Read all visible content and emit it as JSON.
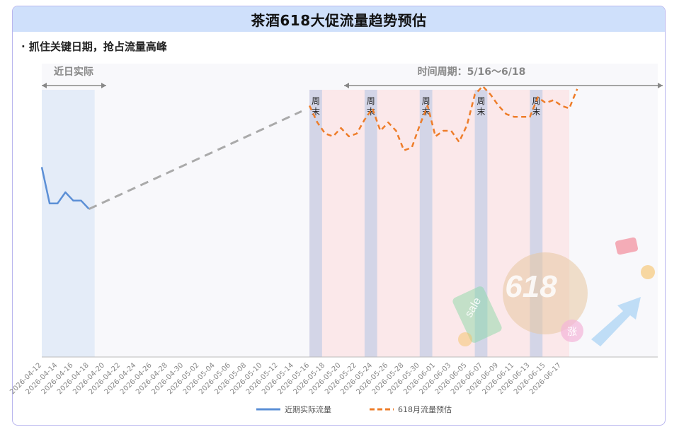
{
  "header": {
    "title": "茶酒618大促流量趋势预估"
  },
  "bullet": "· 抓住关键日期，抢占流量高峰",
  "annotations": {
    "recent_label": "近日实际",
    "period_label": "时间周期：5/16～6/18",
    "weekend_label": "周\n末"
  },
  "colors": {
    "actual": "#5b8fd6",
    "forecast": "#ee7d2a",
    "connector": "#aaaaaa",
    "recent_band": "#e4ecf8",
    "period_band": "#fbe8ea",
    "weekend_band": "#c9cfe6",
    "title_bar": "#cfe0fb",
    "frame": "#b9b6ee"
  },
  "chart_data": {
    "type": "line",
    "x_tick_labels": [
      "2026-04-12",
      "2026-04-14",
      "2026-04-16",
      "2026-04-18",
      "2026-04-20",
      "2026-04-22",
      "2026-04-24",
      "2026-04-26",
      "2026-04-28",
      "2026-04-30",
      "2026-05-02",
      "2026-05-04",
      "2026-05-06",
      "2026-05-08",
      "2026-05-10",
      "2026-05-12",
      "2026-05-14",
      "2026-05-16",
      "2026-05-18",
      "2026-05-20",
      "2026-05-22",
      "2026-05-24",
      "2026-05-26",
      "2026-05-28",
      "2026-05-30",
      "2026-06-01",
      "2026-06-03",
      "2026-06-05",
      "2026-06-07",
      "2026-06-09",
      "2026-06-11",
      "2026-06-13",
      "2026-06-15",
      "2026-06-17"
    ],
    "weekend_ranges": [
      [
        "2026-05-16",
        "2026-05-17"
      ],
      [
        "2026-05-23",
        "2026-05-24"
      ],
      [
        "2026-05-30",
        "2026-05-31"
      ],
      [
        "2026-06-06",
        "2026-06-07"
      ],
      [
        "2026-06-13",
        "2026-06-14"
      ]
    ],
    "recent_range": [
      "2026-04-12",
      "2026-04-18"
    ],
    "period_range": [
      "2026-05-16",
      "2026-06-18"
    ],
    "series": [
      {
        "name": "近期实际流量",
        "style": "solid",
        "points": [
          [
            "2026-04-12",
            0.68
          ],
          [
            "2026-04-13",
            0.55
          ],
          [
            "2026-04-14",
            0.55
          ],
          [
            "2026-04-15",
            0.59
          ],
          [
            "2026-04-16",
            0.56
          ],
          [
            "2026-04-17",
            0.56
          ],
          [
            "2026-04-18",
            0.53
          ]
        ]
      },
      {
        "name": "connector",
        "style": "dashed",
        "points": [
          [
            "2026-04-18",
            0.53
          ],
          [
            "2026-05-15",
            0.88
          ]
        ]
      },
      {
        "name": "618月流量预估",
        "style": "dashed",
        "points": [
          [
            "2026-05-16",
            0.9
          ],
          [
            "2026-05-17",
            0.84
          ],
          [
            "2026-05-18",
            0.8
          ],
          [
            "2026-05-19",
            0.79
          ],
          [
            "2026-05-20",
            0.82
          ],
          [
            "2026-05-21",
            0.79
          ],
          [
            "2026-05-22",
            0.8
          ],
          [
            "2026-05-23",
            0.85
          ],
          [
            "2026-05-24",
            0.89
          ],
          [
            "2026-05-25",
            0.81
          ],
          [
            "2026-05-26",
            0.84
          ],
          [
            "2026-05-27",
            0.81
          ],
          [
            "2026-05-28",
            0.74
          ],
          [
            "2026-05-29",
            0.75
          ],
          [
            "2026-05-30",
            0.83
          ],
          [
            "2026-05-31",
            0.9
          ],
          [
            "2026-06-01",
            0.79
          ],
          [
            "2026-06-02",
            0.81
          ],
          [
            "2026-06-03",
            0.81
          ],
          [
            "2026-06-04",
            0.77
          ],
          [
            "2026-06-05",
            0.83
          ],
          [
            "2026-06-06",
            0.94
          ],
          [
            "2026-06-07",
            0.97
          ],
          [
            "2026-06-08",
            0.94
          ],
          [
            "2026-06-09",
            0.9
          ],
          [
            "2026-06-10",
            0.87
          ],
          [
            "2026-06-11",
            0.86
          ],
          [
            "2026-06-12",
            0.86
          ],
          [
            "2026-06-13",
            0.86
          ],
          [
            "2026-06-14",
            0.93
          ],
          [
            "2026-06-15",
            0.91
          ],
          [
            "2026-06-16",
            0.92
          ],
          [
            "2026-06-17",
            0.9
          ],
          [
            "2026-06-18",
            0.89
          ],
          [
            "2026-06-19",
            0.96
          ]
        ]
      }
    ],
    "legend": [
      {
        "label": "近期实际流量",
        "style": "solid",
        "color": "#5b8fd6"
      },
      {
        "label": "618月流量预估",
        "style": "dashed",
        "color": "#ee7d2a"
      }
    ],
    "legend_position": "bottom",
    "grid": false
  },
  "decoration": {
    "text": "618",
    "sale": "sale",
    "rise": "涨"
  }
}
